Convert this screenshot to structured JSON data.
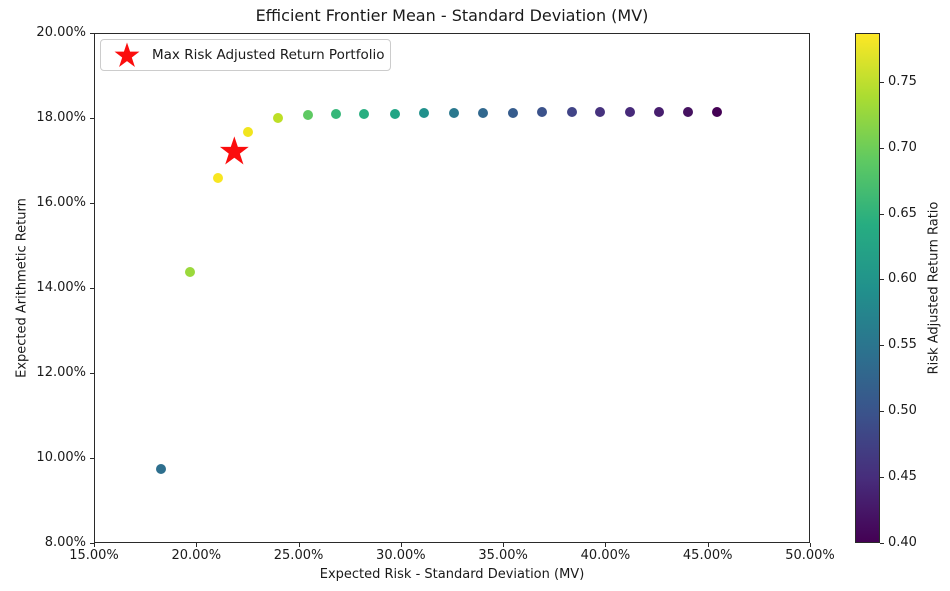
{
  "chart_data": {
    "type": "scatter",
    "title": "Efficient Frontier Mean - Standard Deviation (MV)",
    "xlabel": "Expected Risk - Standard Deviation (MV)",
    "ylabel": "Expected Arithmetic Return",
    "xlim_pct": [
      15,
      50
    ],
    "ylim_pct": [
      8,
      20
    ],
    "grid": true,
    "grid_style": "dotted",
    "x_ticks": [
      {
        "v": 15,
        "label": "15.00%"
      },
      {
        "v": 20,
        "label": "20.00%"
      },
      {
        "v": 25,
        "label": "25.00%"
      },
      {
        "v": 30,
        "label": "30.00%"
      },
      {
        "v": 35,
        "label": "35.00%"
      },
      {
        "v": 40,
        "label": "40.00%"
      },
      {
        "v": 45,
        "label": "45.00%"
      },
      {
        "v": 50,
        "label": "50.00%"
      }
    ],
    "y_ticks": [
      {
        "v": 8,
        "label": "8.00%"
      },
      {
        "v": 10,
        "label": "10.00%"
      },
      {
        "v": 12,
        "label": "12.00%"
      },
      {
        "v": 14,
        "label": "14.00%"
      },
      {
        "v": 16,
        "label": "16.00%"
      },
      {
        "v": 18,
        "label": "18.00%"
      },
      {
        "v": 20,
        "label": "20.00%"
      }
    ],
    "points": [
      {
        "risk_pct": 18.26,
        "return_pct": 9.74,
        "ratio": 0.533,
        "color": "#2e6f8e"
      },
      {
        "risk_pct": 19.68,
        "return_pct": 14.38,
        "ratio": 0.731,
        "color": "#9bd93c"
      },
      {
        "risk_pct": 21.08,
        "return_pct": 16.6,
        "ratio": 0.787,
        "color": "#f8e621"
      },
      {
        "risk_pct": 22.54,
        "return_pct": 17.66,
        "ratio": 0.783,
        "color": "#f1e51e"
      },
      {
        "risk_pct": 24.01,
        "return_pct": 18.01,
        "ratio": 0.75,
        "color": "#bddf26"
      },
      {
        "risk_pct": 25.45,
        "return_pct": 18.07,
        "ratio": 0.71,
        "color": "#5ec962"
      },
      {
        "risk_pct": 26.83,
        "return_pct": 18.09,
        "ratio": 0.674,
        "color": "#35b779"
      },
      {
        "risk_pct": 28.21,
        "return_pct": 18.1,
        "ratio": 0.642,
        "color": "#28ae80"
      },
      {
        "risk_pct": 29.7,
        "return_pct": 18.1,
        "ratio": 0.609,
        "color": "#21a585"
      },
      {
        "risk_pct": 31.15,
        "return_pct": 18.11,
        "ratio": 0.581,
        "color": "#21918c"
      },
      {
        "risk_pct": 32.6,
        "return_pct": 18.11,
        "ratio": 0.556,
        "color": "#2a788e"
      },
      {
        "risk_pct": 34.03,
        "return_pct": 18.12,
        "ratio": 0.532,
        "color": "#31688e"
      },
      {
        "risk_pct": 35.48,
        "return_pct": 18.12,
        "ratio": 0.511,
        "color": "#365c8d"
      },
      {
        "risk_pct": 36.92,
        "return_pct": 18.13,
        "ratio": 0.491,
        "color": "#3b528b"
      },
      {
        "risk_pct": 38.35,
        "return_pct": 18.13,
        "ratio": 0.473,
        "color": "#414487"
      },
      {
        "risk_pct": 39.74,
        "return_pct": 18.13,
        "ratio": 0.456,
        "color": "#46327e"
      },
      {
        "risk_pct": 41.2,
        "return_pct": 18.14,
        "ratio": 0.44,
        "color": "#472a7a"
      },
      {
        "risk_pct": 42.64,
        "return_pct": 18.14,
        "ratio": 0.426,
        "color": "#471e6e"
      },
      {
        "risk_pct": 44.05,
        "return_pct": 18.14,
        "ratio": 0.412,
        "color": "#451260"
      },
      {
        "risk_pct": 45.47,
        "return_pct": 18.15,
        "ratio": 0.399,
        "color": "#440154"
      }
    ],
    "max_portfolio": {
      "risk_pct": 21.86,
      "return_pct": 17.23,
      "ratio": 0.79,
      "color": "#fb0d0d",
      "label": "Max Risk Adjusted Return Portfolio"
    },
    "legend_position": "upper left",
    "colorbar": {
      "label": "Risk Adjusted Return Ratio",
      "min": 0.4,
      "max": 0.787,
      "ticks": [
        {
          "v": 0.4,
          "label": "0.40"
        },
        {
          "v": 0.45,
          "label": "0.45"
        },
        {
          "v": 0.5,
          "label": "0.50"
        },
        {
          "v": 0.55,
          "label": "0.55"
        },
        {
          "v": 0.6,
          "label": "0.60"
        },
        {
          "v": 0.65,
          "label": "0.65"
        },
        {
          "v": 0.7,
          "label": "0.70"
        },
        {
          "v": 0.75,
          "label": "0.75"
        }
      ],
      "gradient_top_to_bottom": [
        "#fde725",
        "#aadc32",
        "#5ec962",
        "#27ad81",
        "#21918c",
        "#2c728e",
        "#3b528b",
        "#472d7b",
        "#440154"
      ]
    }
  }
}
